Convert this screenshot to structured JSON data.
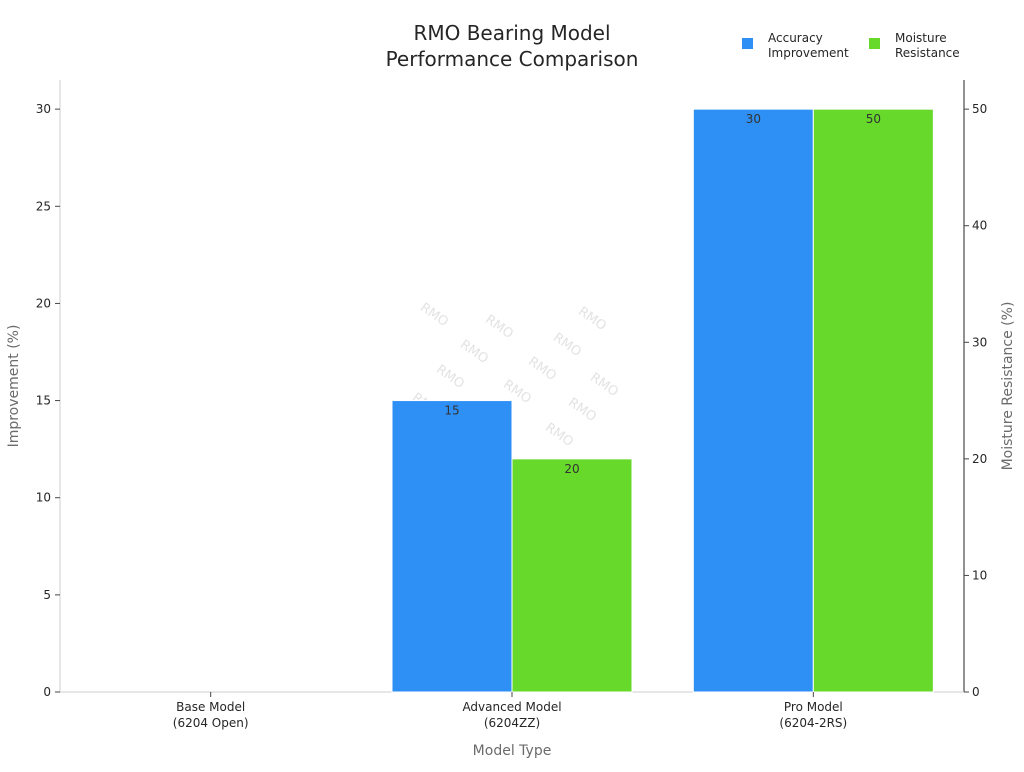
{
  "chart_data": {
    "type": "bar",
    "title": [
      "RMO Bearing Model",
      "Performance Comparison"
    ],
    "xlabel": "Model Type",
    "ylabel_left": "Improvement (%)",
    "ylabel_right": "Moisture Resistance (%)",
    "categories": [
      [
        "Base Model",
        "(6204 Open)"
      ],
      [
        "Advanced Model",
        "(6204ZZ)"
      ],
      [
        "Pro Model",
        "(6204-2RS)"
      ]
    ],
    "series": [
      {
        "name": [
          "Accuracy",
          "Improvement"
        ],
        "axis": "left",
        "color": "#2e8ff5",
        "values": [
          0,
          15,
          30
        ],
        "labels": [
          "",
          "15",
          "30"
        ]
      },
      {
        "name": [
          "Moisture",
          "Resistance"
        ],
        "axis": "right",
        "color": "#66d92a",
        "values": [
          0,
          20,
          50
        ],
        "labels": [
          "",
          "20",
          "50"
        ]
      }
    ],
    "ylim_left": [
      0,
      31.5
    ],
    "ylim_right": [
      0,
      52.5
    ],
    "yticks_left": [
      "0",
      "5",
      "10",
      "15",
      "20",
      "25",
      "30"
    ],
    "yticks_right": [
      "0",
      "10",
      "20",
      "30",
      "40",
      "50"
    ],
    "grid": false,
    "legend_position": "top-right",
    "watermark": "RMO"
  }
}
